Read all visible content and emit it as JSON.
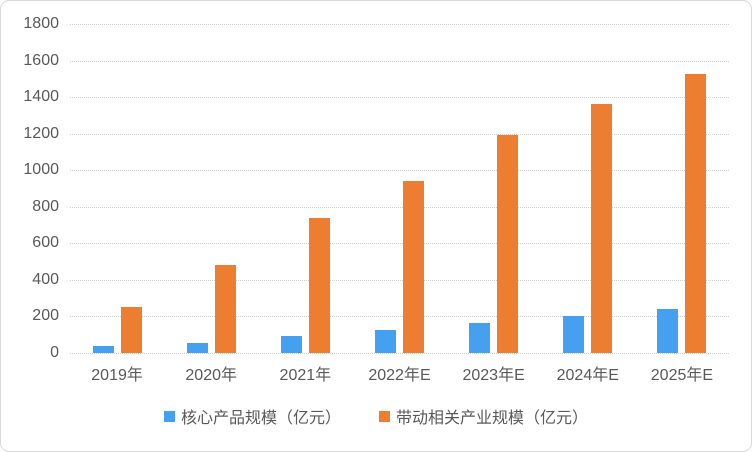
{
  "chart": {
    "background": "#FFFFFF",
    "border_color": "#D9D9D9",
    "gridline_color": "#CFCFCF",
    "text_color": "#595959"
  },
  "chart_data": {
    "type": "bar",
    "categories": [
      "2019年",
      "2020年",
      "2021年",
      "2022年E",
      "2023年E",
      "2024年E",
      "2025年E"
    ],
    "series": [
      {
        "name": "核心产品规模（亿元）",
        "color": "#45A1F0",
        "values": [
          38,
          57,
          92,
          126,
          165,
          205,
          238
        ]
      },
      {
        "name": "带动相关产业规模（亿元）",
        "color": "#ED7D31",
        "values": [
          250,
          482,
          740,
          940,
          1195,
          1360,
          1525
        ]
      }
    ],
    "title": "",
    "xlabel": "",
    "ylabel": "",
    "ylim": [
      0,
      1800
    ],
    "ytick_step": 200,
    "yticks": [
      "0",
      "200",
      "400",
      "600",
      "800",
      "1000",
      "1200",
      "1400",
      "1600",
      "1800"
    ],
    "grid": true,
    "legend_position": "bottom"
  }
}
